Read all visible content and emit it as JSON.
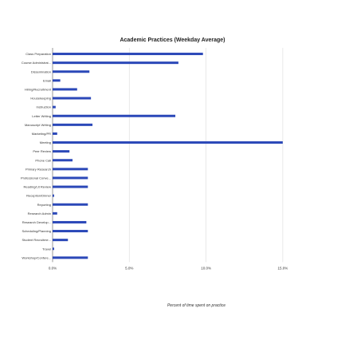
{
  "chart_data": {
    "type": "bar",
    "orientation": "horizontal",
    "title": "Academic Practices (Weekday Average)",
    "xlabel": "Percent of time spent on practice",
    "ylabel": "",
    "xlim": [
      0,
      17.5
    ],
    "xticks": [
      "0.0%",
      "5.0%",
      "10.0%",
      "15.0%"
    ],
    "xtick_values": [
      0,
      5,
      10,
      15
    ],
    "grid": "vertical",
    "bar_color": "#2b48b8",
    "categories": [
      "Class Preparation",
      "Course Administrat...",
      "Dissemination",
      "Email",
      "Hiring/Recruitment",
      "Housekeeping",
      "Instruction",
      "Letter Writing",
      "Manuscript Writing",
      "Marketing/PR",
      "Meeting",
      "Peer Review",
      "Phone Call",
      "Primary Research",
      "Professional Conve...",
      "Reading/Lit Review",
      "Reception/Dinner",
      "Reporting",
      "Research Admin",
      "Research Develop...",
      "Scheduling/Planning",
      "Student Recruitme...",
      "Travel",
      "Workshop/Confere..."
    ],
    "values": [
      9.8,
      8.2,
      2.4,
      0.5,
      1.6,
      2.5,
      0.2,
      8.0,
      2.6,
      0.3,
      15.0,
      1.1,
      1.3,
      2.3,
      2.3,
      2.3,
      0.1,
      2.3,
      0.3,
      2.2,
      2.3,
      1.0,
      0.1,
      2.3
    ]
  }
}
